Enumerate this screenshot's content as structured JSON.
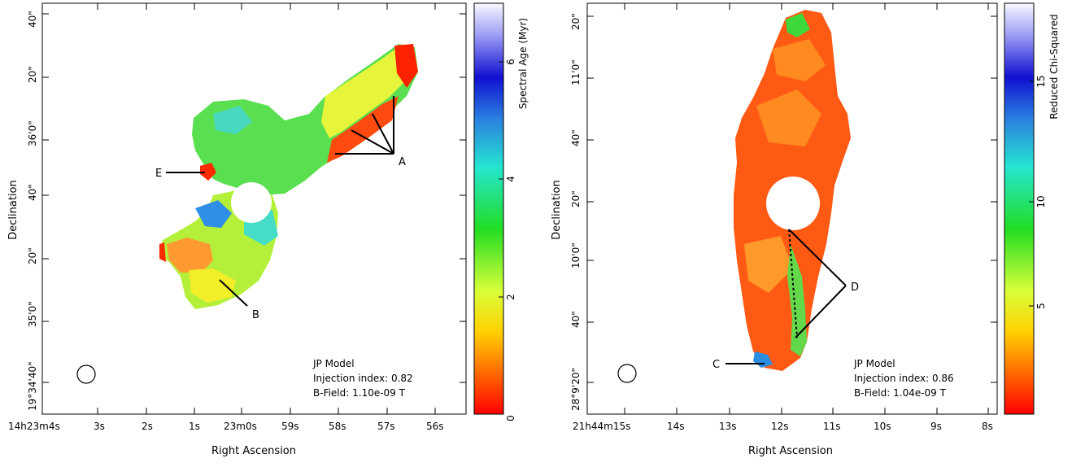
{
  "chart_data": [
    {
      "type": "heatmap",
      "panel": "left",
      "xlabel": "Right Ascension",
      "ylabel": "Declination",
      "x_ticks": [
        "14h23m4s",
        "3s",
        "2s",
        "1s",
        "23m0s",
        "59s",
        "58s",
        "57s",
        "56s"
      ],
      "y_ticks": [
        "19°34'40\"",
        "35'0\"",
        "20\"",
        "40\"",
        "36'0\"",
        "20\"",
        "40\""
      ],
      "colorbar": {
        "label": "Spectral Age (Myr)",
        "ticks": [
          "0",
          "2",
          "4",
          "6"
        ],
        "range": [
          0,
          7
        ]
      },
      "annotations": [
        {
          "label": "A",
          "type": "multiple arrows"
        },
        {
          "label": "B",
          "type": "arrow"
        },
        {
          "label": "E",
          "type": "arrow"
        }
      ],
      "legend_text": [
        "JP Model",
        "Injection index: 0.82",
        "B-Field: 1.10e-09 T"
      ],
      "beam": "ellipse bottom-left"
    },
    {
      "type": "heatmap",
      "panel": "right",
      "xlabel": "Right Ascension",
      "ylabel": "Declination",
      "x_ticks": [
        "21h44m15s",
        "14s",
        "13s",
        "12s",
        "11s",
        "10s",
        "9s",
        "8s"
      ],
      "y_ticks": [
        "28°9'20\"",
        "40\"",
        "10'0\"",
        "20\"",
        "40\"",
        "11'0\"",
        "20\""
      ],
      "colorbar": {
        "label": "Reduced Chi-Squared",
        "ticks": [
          "5",
          "10",
          "15"
        ],
        "range": [
          0,
          18
        ]
      },
      "annotations": [
        {
          "label": "C",
          "type": "arrow"
        },
        {
          "label": "D",
          "type": "multiple arrows"
        }
      ],
      "legend_text": [
        "JP Model",
        "Injection index: 0.86",
        "B-Field: 1.04e-09 T"
      ],
      "beam": "ellipse bottom-left"
    }
  ]
}
